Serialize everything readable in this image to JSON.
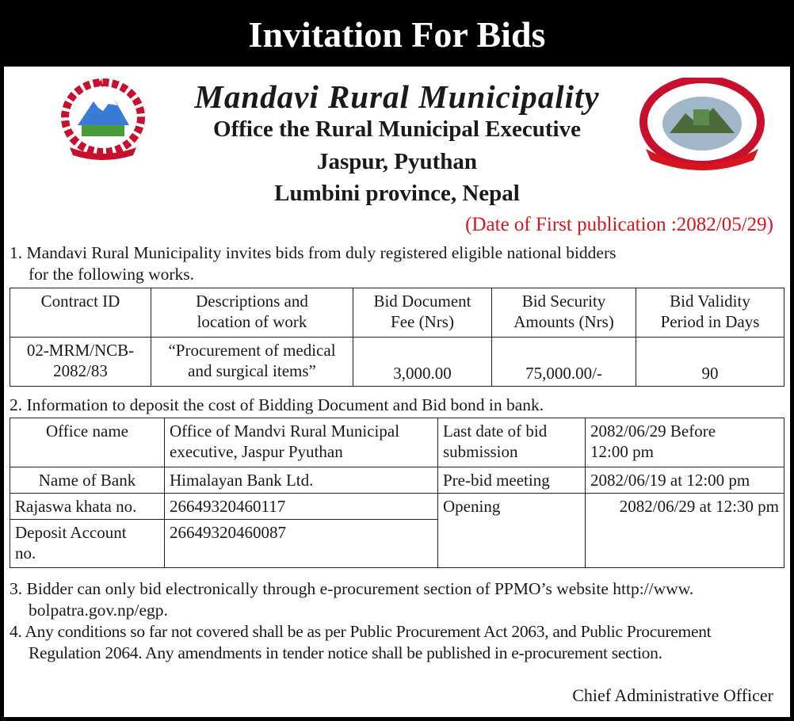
{
  "title": "Invitation For Bids",
  "header": {
    "municipality": "Mandavi Rural Municipality",
    "office": "Office the Rural Municipal Executive",
    "location": "Jaspur, Pyuthan",
    "province": "Lumbini province, Nepal",
    "publication_date": "(Date of First publication :2082/05/29)"
  },
  "logos": {
    "left": "nepal-government-emblem",
    "right": "mandavi-rural-municipality-seal"
  },
  "colors": {
    "banner": "#000000",
    "date": "#d8141d"
  },
  "para1": {
    "line1": "1. Mandavi Rural Municipality invites bids from duly registered eligible national bidders",
    "line2": "for the following works."
  },
  "works_table": {
    "headers": [
      [
        "Contract ID",
        ""
      ],
      [
        "Descriptions and",
        "location of work"
      ],
      [
        "Bid Document",
        "Fee (Nrs)"
      ],
      [
        "Bid Security",
        "Amounts (Nrs)"
      ],
      [
        "Bid Validity",
        "Period in Days"
      ]
    ],
    "row": {
      "contract_id": [
        "02-MRM/NCB-",
        "2082/83"
      ],
      "description": [
        "“Procurement of medical",
        "and surgical items”"
      ],
      "fee": "3,000.00",
      "security": "75,000.00/-",
      "validity": "90"
    }
  },
  "para2": "2. Information to deposit the cost of Bidding Document and Bid bond in bank.",
  "bank_table": {
    "office_label": "Office name",
    "office_value": [
      "Office of Mandvi Rural Municipal",
      "executive, Jaspur Pyuthan"
    ],
    "bank_label": "Name of Bank",
    "bank_value": "Himalayan Bank Ltd.",
    "rajaswa_label": "Rajaswa khata no.",
    "rajaswa_value": "26649320460117",
    "deposit_label": [
      "Deposit Account",
      "no."
    ],
    "deposit_value": "26649320460087",
    "last_date_label": [
      "Last date of bid",
      "submission"
    ],
    "last_date_value": [
      "2082/06/29 Before",
      "12:00 pm"
    ],
    "prebid_label": "Pre-bid meeting",
    "prebid_value": "2082/06/19 at 12:00 pm",
    "opening_label": "Opening",
    "opening_value": "2082/06/29 at 12:30 pm"
  },
  "para3": {
    "line1": "3. Bidder can only bid electronically through e-procurement section of PPMO’s website http://www.",
    "line2": "bolpatra.gov.np/egp."
  },
  "para4": {
    "line1": "4. Any conditions so far not covered shall be as per Public Procurement Act 2063, and Public Procurement",
    "line2": "Regulation 2064. Any amendments in tender notice shall be published in e-procurement section."
  },
  "signature": "Chief Administrative Officer"
}
